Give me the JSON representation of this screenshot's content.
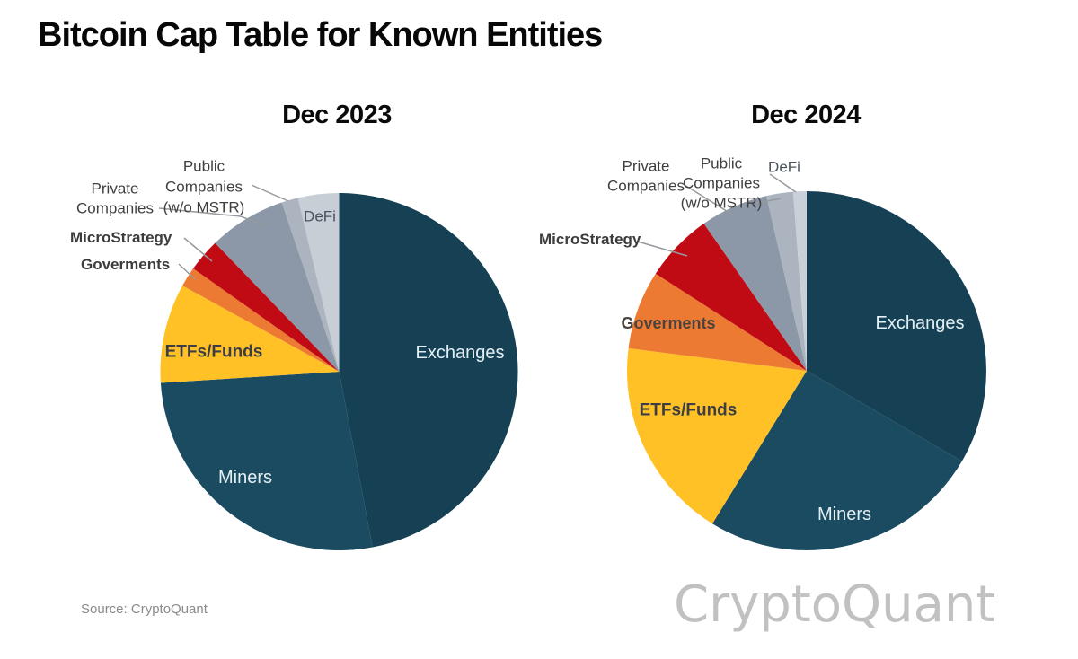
{
  "title": "Bitcoin Cap Table for Known Entities",
  "source_note": "Source: CryptoQuant",
  "watermark": "CryptoQuant",
  "chart_data": [
    {
      "type": "pie",
      "title": "Dec 2023",
      "unit": "percent_share",
      "start_angle_deg": 0,
      "direction": "clockwise",
      "legend": false,
      "labels": "inline+callouts",
      "slices": [
        {
          "label": "Exchanges",
          "value": 47.0,
          "color": "#164155"
        },
        {
          "label": "Miners",
          "value": 27.0,
          "color": "#1b4b61"
        },
        {
          "label": "ETFs/Funds",
          "value": 9.0,
          "color": "#ffc125"
        },
        {
          "label": "Goverments",
          "value": 1.8,
          "color": "#ec7a33"
        },
        {
          "label": "MicroStrategy",
          "value": 3.0,
          "color": "#c00a14"
        },
        {
          "label": "Private Companies",
          "value": 7.0,
          "color": "#8c98a7"
        },
        {
          "label": "Public Companies (w/o MSTR)",
          "value": 1.5,
          "color": "#abb4bf"
        },
        {
          "label": "DeFi",
          "value": 3.7,
          "color": "#c7ced6"
        }
      ]
    },
    {
      "type": "pie",
      "title": "Dec 2024",
      "unit": "percent_share",
      "start_angle_deg": 0,
      "direction": "clockwise",
      "legend": false,
      "labels": "inline+callouts",
      "slices": [
        {
          "label": "Exchanges",
          "value": 33.4,
          "color": "#164155"
        },
        {
          "label": "Miners",
          "value": 25.4,
          "color": "#1b4b61"
        },
        {
          "label": "ETFs/Funds",
          "value": 18.2,
          "color": "#ffc125"
        },
        {
          "label": "Goverments",
          "value": 7.1,
          "color": "#ec7a33"
        },
        {
          "label": "MicroStrategy",
          "value": 6.2,
          "color": "#c00a14"
        },
        {
          "label": "Private Companies",
          "value": 6.1,
          "color": "#8c98a7"
        },
        {
          "label": "Public Companies (w/o MSTR)",
          "value": 2.4,
          "color": "#abb4bf"
        },
        {
          "label": "DeFi",
          "value": 1.2,
          "color": "#c9d0d7"
        }
      ]
    }
  ],
  "callouts_left": {
    "public_lines": [
      "Public",
      "Companies",
      "(w/o MSTR)"
    ],
    "private_lines": [
      "Private",
      "Companies"
    ],
    "microstrategy": "MicroStrategy",
    "goverments": "Goverments",
    "defi": "DeFi"
  },
  "callouts_right": {
    "private_lines": [
      "Private",
      "Companies"
    ],
    "public_lines": [
      "Public",
      "Companies",
      "(w/o MSTR)"
    ],
    "microstrategy": "MicroStrategy",
    "defi": "DeFi"
  },
  "colors": {
    "exchanges": "#164155",
    "miners": "#1b4b61",
    "etfs_funds": "#ffc125",
    "goverments": "#ec7a33",
    "microstrategy": "#c00a14",
    "private_companies": "#8c98a7",
    "public_companies": "#abb4bf",
    "defi": "#c7ced6",
    "leader_line": "#96999e",
    "watermark": "#c1c1c1"
  }
}
